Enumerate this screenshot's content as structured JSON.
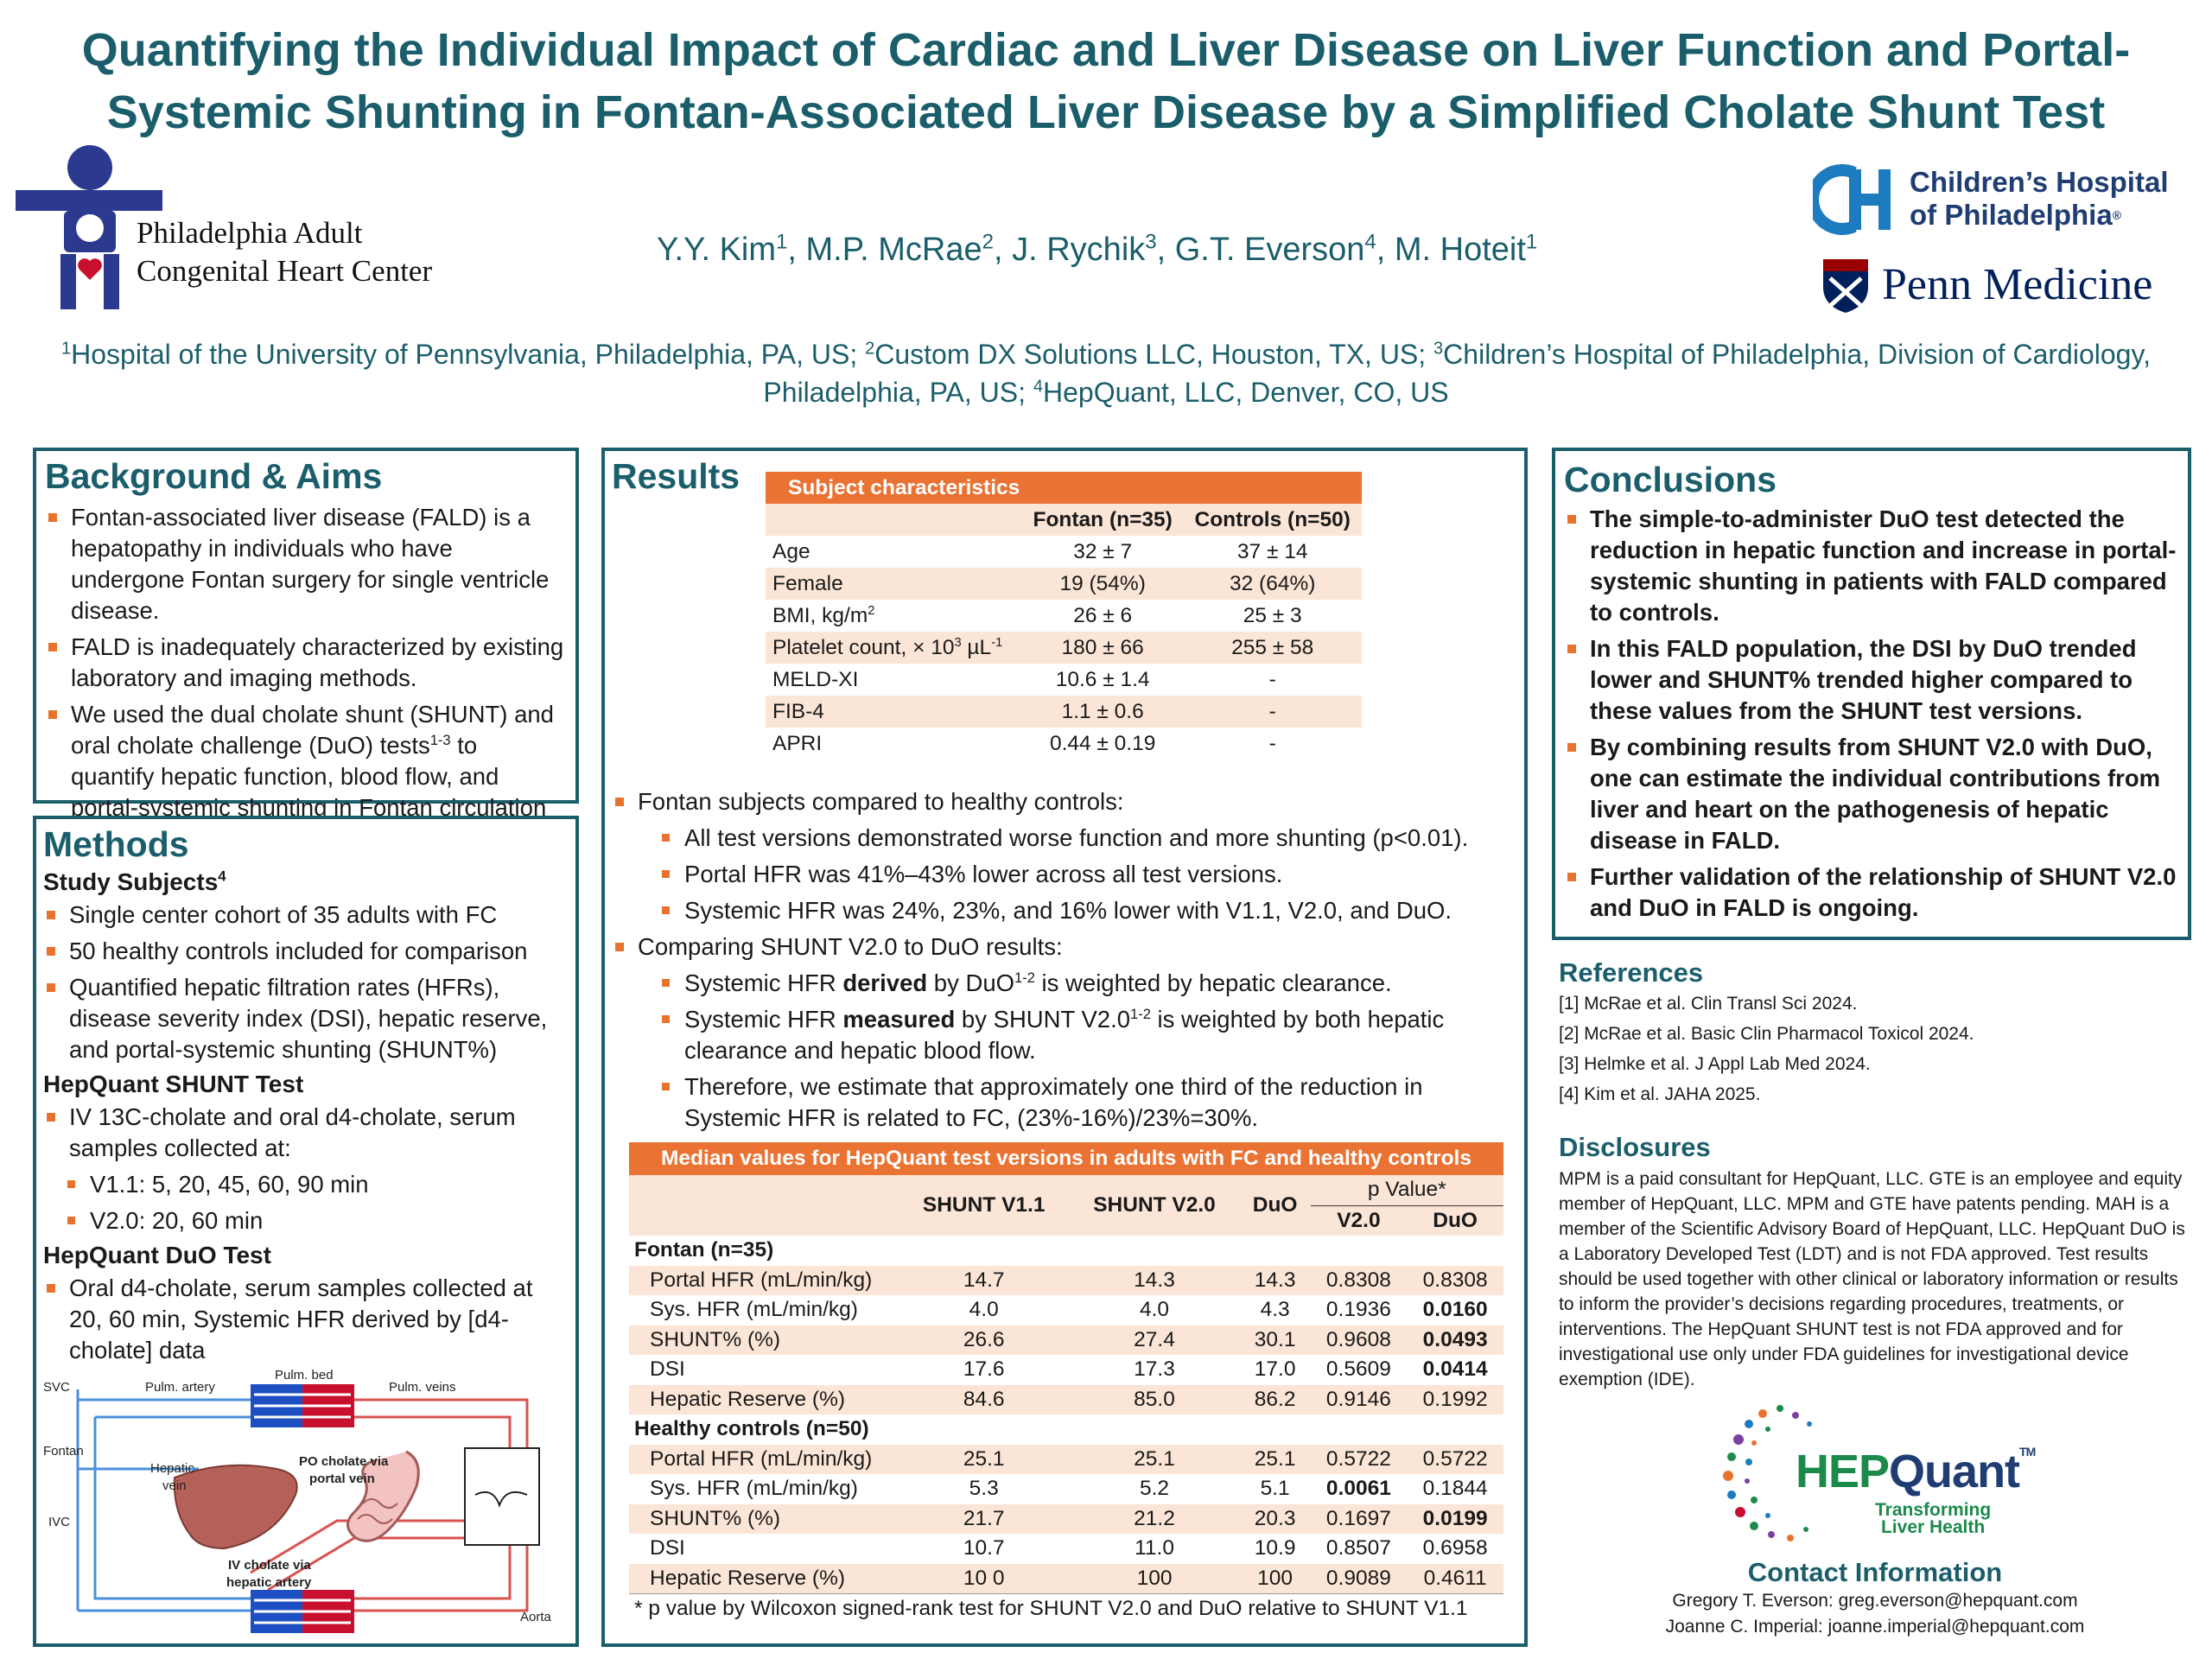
{
  "title": "Quantifying the Individual Impact of Cardiac and Liver Disease on Liver Function and Portal-Systemic Shunting in Fontan-Associated Liver Disease by a Simplified Cholate Shunt Test",
  "authors": [
    {
      "name": "Y.Y. Kim",
      "sup": "1"
    },
    {
      "name": "M.P. McRae",
      "sup": "2"
    },
    {
      "name": "J. Rychik",
      "sup": "3"
    },
    {
      "name": "G.T. Everson",
      "sup": "4"
    },
    {
      "name": "M. Hoteit",
      "sup": "1"
    }
  ],
  "affiliations": [
    {
      "sup": "1",
      "text": "Hospital of the University of Pennsylvania, Philadelphia, PA, US; "
    },
    {
      "sup": "2",
      "text": "Custom DX Solutions LLC, Houston, TX, US; "
    },
    {
      "sup": "3",
      "text": "Children’s Hospital of Philadelphia, Division of Cardiology, Philadelphia, PA, US; "
    },
    {
      "sup": "4",
      "text": "HepQuant, LLC, Denver, CO, US"
    }
  ],
  "logos": {
    "padult_line1": "Philadelphia Adult",
    "padult_line2": "Congenital Heart Center",
    "chop_line1": "Children’s Hospital",
    "chop_line2": "of Philadelphia",
    "chop_tm": "®",
    "penn": "Penn Medicine",
    "hepquant_hep": "HEP",
    "hepquant_quant": "Quant",
    "hepquant_tm": "TM",
    "hepquant_tag1": "Transforming",
    "hepquant_tag2": "Liver Health",
    "colors": {
      "teal": "#1b5e6b",
      "orange": "#ea7334",
      "navy": "#2b3a8f",
      "chop_blue": "#1d7bbf",
      "penn_navy": "#011f5b",
      "hep_green": "#1b8a4a",
      "hep_navy": "#1f3d73"
    }
  },
  "background": {
    "heading": "Background & Aims",
    "bullets": [
      "Fontan-associated liver disease (FALD) is a hepatopathy in individuals who have undergone Fontan surgery for single ventricle disease.",
      "FALD is inadequately characterized by existing laboratory and imaging methods.",
      {
        "pre": "We used the dual cholate shunt (SHUNT) and oral cholate challenge (DuO) tests",
        "sup": "1-3",
        "post": " to quantify hepatic function, blood flow, and portal-systemic shunting in Fontan circulation (FC)."
      }
    ]
  },
  "methods": {
    "heading": "Methods",
    "study_subjects": {
      "label": "Study Subjects",
      "sup": "4"
    },
    "subject_bullets": [
      "Single center cohort of 35 adults with FC",
      "50 healthy controls included for comparison",
      "Quantified hepatic filtration rates (HFRs), disease severity index (DSI), hepatic reserve, and portal-systemic shunting (SHUNT%)"
    ],
    "shunt_heading": "HepQuant SHUNT Test",
    "shunt_bullets": [
      "IV 13C-cholate and oral d4-cholate, serum samples collected at:"
    ],
    "shunt_sub": [
      "V1.1:  5, 20, 45, 60, 90 min",
      "V2.0:  20, 60 min"
    ],
    "duo_heading": "HepQuant DuO Test",
    "duo_bullets": [
      "Oral d4-cholate, serum samples collected at 20, 60 min, Systemic HFR derived by [d4-cholate] data"
    ],
    "diagram": {
      "svc": "SVC",
      "fontan": "Fontan",
      "ivc": "IVC",
      "pulm_artery": "Pulm. artery",
      "pulm_bed": "Pulm. bed",
      "pulm_veins": "Pulm. veins",
      "hepatic_vein_1": "Hepatic",
      "hepatic_vein_2": "vein",
      "po_cholate_1": "PO cholate via",
      "po_cholate_2": "portal vein",
      "iv_cholate_1": "IV cholate via",
      "iv_cholate_2": "hepatic artery",
      "aorta": "Aorta"
    }
  },
  "results": {
    "heading": "Results",
    "subject_table": {
      "title": "Subject characteristics",
      "col_fontan": "Fontan (n=35)",
      "col_controls": "Controls (n=50)",
      "rows": [
        {
          "label": "Age",
          "fontan": "32 ± 7",
          "controls": "37 ± 14"
        },
        {
          "label": "Female",
          "fontan": "19 (54%)",
          "controls": "32 (64%)"
        },
        {
          "label": "BMI, kg/m",
          "label_sup": "2",
          "fontan": "26 ± 6",
          "controls": "25 ± 3"
        },
        {
          "label": "Platelet count, × 10",
          "label_sup": "3",
          "label_post": " µL",
          "label_sup2": "-1",
          "fontan": "180 ± 66",
          "controls": "255 ± 58"
        },
        {
          "label": "MELD-XI",
          "fontan": "10.6 ± 1.4",
          "controls": "-"
        },
        {
          "label": "FIB-4",
          "fontan": "1.1 ± 0.6",
          "controls": "-"
        },
        {
          "label": "APRI",
          "fontan": "0.44 ± 0.19",
          "controls": "-"
        }
      ]
    },
    "bullet1": "Fontan subjects compared to healthy controls:",
    "bullet1_sub": [
      "All test versions demonstrated worse function and more shunting (p<0.01).",
      "Portal HFR was 41%–43% lower across all test versions.",
      "Systemic HFR was 24%, 23%, and 16% lower with V1.1, V2.0, and DuO."
    ],
    "bullet2": "Comparing SHUNT V2.0 to DuO results:",
    "bullet2_sub": [
      {
        "pre": "Systemic HFR ",
        "bold": "derived",
        "mid": " by DuO",
        "sup": "1-2",
        "post": " is weighted by hepatic clearance."
      },
      {
        "pre": "Systemic HFR ",
        "bold": "measured",
        "mid": " by SHUNT V2.0",
        "sup": "1-2",
        "post": " is weighted by both hepatic clearance and hepatic blood flow."
      },
      {
        "pre": "Therefore, we estimate that approximately one third of the reduction in Systemic HFR is related to FC, (23%-16%)/23%=30%."
      }
    ],
    "median_table": {
      "title": "Median values for HepQuant test versions in adults with FC and healthy controls",
      "col_v11": "SHUNT V1.1",
      "col_v20": "SHUNT V2.0",
      "col_duo": "DuO",
      "col_p": "p Value*",
      "col_p_v20": "V2.0",
      "col_p_duo": "DuO",
      "fontan_label": "Fontan (n=35)",
      "fontan_rows": [
        {
          "label": "Portal HFR (mL/min/kg)",
          "v11": "14.7",
          "v20": "14.3",
          "duo": "14.3",
          "pv20": "0.8308",
          "pduo": "0.8308",
          "bv20": false,
          "bduo": false
        },
        {
          "label": "Sys. HFR (mL/min/kg)",
          "v11": "4.0",
          "v20": "4.0",
          "duo": "4.3",
          "pv20": "0.1936",
          "pduo": "0.0160",
          "bv20": false,
          "bduo": true
        },
        {
          "label": "SHUNT% (%)",
          "v11": "26.6",
          "v20": "27.4",
          "duo": "30.1",
          "pv20": "0.9608",
          "pduo": "0.0493",
          "bv20": false,
          "bduo": true
        },
        {
          "label": "DSI",
          "v11": "17.6",
          "v20": "17.3",
          "duo": "17.0",
          "pv20": "0.5609",
          "pduo": "0.0414",
          "bv20": false,
          "bduo": true
        },
        {
          "label": "Hepatic Reserve (%)",
          "v11": "84.6",
          "v20": "85.0",
          "duo": "86.2",
          "pv20": "0.9146",
          "pduo": "0.1992",
          "bv20": false,
          "bduo": false
        }
      ],
      "controls_label": "Healthy controls (n=50)",
      "controls_rows": [
        {
          "label": "Portal HFR (mL/min/kg)",
          "v11": "25.1",
          "v20": "25.1",
          "duo": "25.1",
          "pv20": "0.5722",
          "pduo": "0.5722",
          "bv20": false,
          "bduo": false
        },
        {
          "label": "Sys. HFR (mL/min/kg)",
          "v11": "5.3",
          "v20": "5.2",
          "duo": "5.1",
          "pv20": "0.0061",
          "pduo": "0.1844",
          "bv20": true,
          "bduo": false
        },
        {
          "label": "SHUNT% (%)",
          "v11": "21.7",
          "v20": "21.2",
          "duo": "20.3",
          "pv20": "0.1697",
          "pduo": "0.0199",
          "bv20": false,
          "bduo": true
        },
        {
          "label": "DSI",
          "v11": "10.7",
          "v20": "11.0",
          "duo": "10.9",
          "pv20": "0.8507",
          "pduo": "0.6958",
          "bv20": false,
          "bduo": false
        },
        {
          "label": "Hepatic Reserve (%)",
          "v11": "10 0",
          "v20": "100",
          "duo": "100",
          "pv20": "0.9089",
          "pduo": "0.4611",
          "bv20": false,
          "bduo": false
        }
      ],
      "footnote": "* p value by Wilcoxon signed-rank test for SHUNT V2.0 and DuO relative to SHUNT V1.1"
    }
  },
  "conclusions": {
    "heading": "Conclusions",
    "bullets": [
      "The simple-to-administer DuO test detected the reduction in hepatic function and increase in portal-systemic shunting in patients with FALD compared to controls.",
      "In this FALD population, the DSI by DuO trended lower and SHUNT% trended higher compared to these values from the SHUNT test versions.",
      "By combining results from SHUNT V2.0 with DuO, one can estimate the individual contributions from liver and heart on the pathogenesis of hepatic disease in FALD.",
      "Further validation of the relationship of SHUNT V2.0 and DuO in FALD is ongoing."
    ]
  },
  "references": {
    "heading": "References",
    "items": [
      "[1] McRae et al. Clin Transl Sci 2024.",
      "[2] McRae et al. Basic Clin Pharmacol Toxicol 2024.",
      "[3] Helmke et al. J Appl Lab Med 2024.",
      "[4] Kim et al. JAHA 2025."
    ]
  },
  "disclosures": {
    "heading": "Disclosures",
    "text": "MPM is a  paid consultant for HepQuant, LLC. GTE is an employee and equity member of HepQuant, LLC. MPM and GTE have patents pending. MAH is a member of the Scientific Advisory Board of HepQuant, LLC. HepQuant DuO is a Laboratory Developed Test (LDT) and is not FDA approved. Test results should be used together with other clinical or laboratory information or results to inform the provider’s decisions regarding procedures, treatments, or interventions. The HepQuant SHUNT test is not FDA approved and for investigational use only under FDA guidelines for investigational device exemption (IDE)."
  },
  "contact": {
    "heading": "Contact Information",
    "lines": [
      "Gregory T. Everson: greg.everson@hepquant.com",
      "Joanne C. Imperial: joanne.imperial@hepquant.com"
    ]
  }
}
